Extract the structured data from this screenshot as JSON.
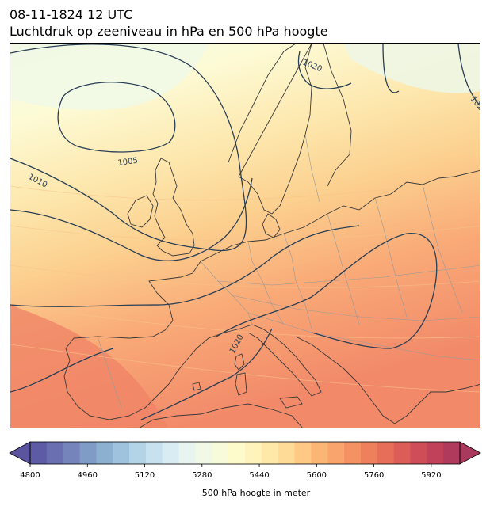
{
  "header": {
    "datetime": "08-11-1824 12 UTC",
    "subtitle": "Luchtdruk op zeeniveau in hPa en 500 hPa hoogte"
  },
  "map": {
    "isobar_labels": [
      "1020",
      "1005",
      "1010",
      "1020",
      "102"
    ],
    "colors": {
      "land_border": "#3a3a3a",
      "country_border": "#9a9a9a",
      "isobar": "#2b3f55"
    }
  },
  "colorbar": {
    "title": "500 hPa hoogte in meter",
    "min": 4800,
    "max": 6000,
    "step": 40,
    "tick_values": [
      "4800",
      "4960",
      "5120",
      "5280",
      "5440",
      "5600",
      "5760",
      "5920"
    ],
    "colors": [
      "#5e5ba6",
      "#6a6fb1",
      "#7585bc",
      "#7f9bc6",
      "#8cb0d0",
      "#9fc3dc",
      "#b3d4e6",
      "#c7e2ee",
      "#d9ecf3",
      "#e8f4f0",
      "#f1f8e6",
      "#f8fbd9",
      "#fdfbcb",
      "#fef4bb",
      "#fee9a9",
      "#fedb97",
      "#fdc984",
      "#fbb675",
      "#f9a46c",
      "#f59263",
      "#ef805d",
      "#e76e59",
      "#dc5d57",
      "#cf4d57",
      "#c04159",
      "#b03a5c"
    ]
  }
}
